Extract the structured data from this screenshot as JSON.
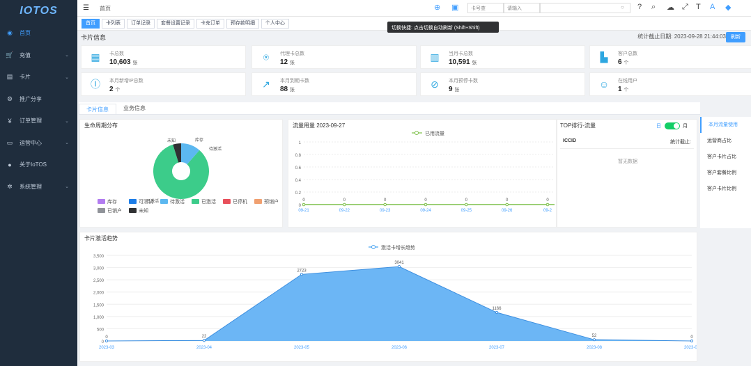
{
  "app": {
    "logo": "IOTOS"
  },
  "sidebar": {
    "items": [
      {
        "label": "首页",
        "icon": "home-icon",
        "glyph": "◉",
        "arrow": false
      },
      {
        "label": "充值",
        "icon": "cart-icon",
        "glyph": "🛒",
        "arrow": true
      },
      {
        "label": "卡片",
        "icon": "card-icon",
        "glyph": "▤",
        "arrow": true
      },
      {
        "label": "推广分享",
        "icon": "share-icon",
        "glyph": "⚙",
        "arrow": false
      },
      {
        "label": "订单管理",
        "icon": "yen-icon",
        "glyph": "¥",
        "arrow": true
      },
      {
        "label": "运营中心",
        "icon": "monitor-icon",
        "glyph": "▭",
        "arrow": true
      },
      {
        "label": "关于IoTOS",
        "icon": "info-icon",
        "glyph": "●",
        "arrow": false
      },
      {
        "label": "系统管理",
        "icon": "settings-icon",
        "glyph": "✲",
        "arrow": true
      }
    ]
  },
  "topbar": {
    "breadcrumb": "首页",
    "select1": "卡号查",
    "select2": "请输入",
    "tooltip": "切换快捷: 点击切换自动刷新 (Shift+Shift)"
  },
  "tags": [
    "首页",
    "卡列表",
    "订单记录",
    "套餐设置记录",
    "卡充订单",
    "预存款明细",
    "个人中心"
  ],
  "overview": {
    "title": "卡片信息",
    "stat_label": "统计截止日期: 2023-09-28 21:44:03",
    "refresh": "刷新"
  },
  "cards": [
    {
      "label": "卡总数",
      "value": "10,603",
      "unit": "张",
      "icon": "sim-icon",
      "glyph": "▦"
    },
    {
      "label": "代理卡总数",
      "value": "12",
      "unit": "张",
      "icon": "agent-icon",
      "glyph": "⍟"
    },
    {
      "label": "当月卡总数",
      "value": "10,591",
      "unit": "张",
      "icon": "calendar-icon",
      "glyph": "▥"
    },
    {
      "label": "客户总数",
      "value": "6",
      "unit": "个",
      "icon": "building-icon",
      "glyph": "▙"
    },
    {
      "label": "本月新增IP总数",
      "value": "2",
      "unit": "个",
      "icon": "ip-icon",
      "glyph": "Ⓘ"
    },
    {
      "label": "本月到期卡数",
      "value": "88",
      "unit": "张",
      "icon": "chart-up-icon",
      "glyph": "↗"
    },
    {
      "label": "本月预停卡数",
      "value": "9",
      "unit": "张",
      "icon": "stop-card-icon",
      "glyph": "⊘"
    },
    {
      "label": "在线用户",
      "value": "1",
      "unit": "个",
      "icon": "user-icon",
      "glyph": "☺"
    }
  ],
  "tabs": [
    "卡片信息",
    "业务信息"
  ],
  "pie_panel": {
    "title": "生命周期分布"
  },
  "line_panel": {
    "title": "流量用量 2023-09-27",
    "legend": "已用流量"
  },
  "top_panel": {
    "title": "TOP排行-流量",
    "toggle_left": "日",
    "toggle_right": "月",
    "col1": "ICCID",
    "col2": "统计截止:",
    "empty": "暂无数据"
  },
  "right_menu": [
    "本月流量使用",
    "运营商占比",
    "客户卡片占比",
    "客户套餐比例",
    "客户卡片比例"
  ],
  "area_panel": {
    "title": "卡片激活趋势",
    "legend": "激活卡增长趋势"
  },
  "chart_data": [
    {
      "type": "pie",
      "title": "生命周期分布",
      "series": [
        {
          "name": "库存",
          "value": 0.5,
          "color": "#b27cf0"
        },
        {
          "name": "可测试",
          "value": 0,
          "color": "#1e7ee8"
        },
        {
          "name": "待激活",
          "value": 1200,
          "color": "#5cb8f0"
        },
        {
          "name": "已激活",
          "value": 8800,
          "color": "#3ccc8a"
        },
        {
          "name": "已停机",
          "value": 0,
          "color": "#e8505b"
        },
        {
          "name": "预销户",
          "value": 0,
          "color": "#f0a070"
        },
        {
          "name": "已销户",
          "value": 0,
          "color": "#909399"
        },
        {
          "name": "未知",
          "value": 500,
          "color": "#303133"
        }
      ],
      "labels": [
        "未知",
        "库存",
        "待激活",
        "已激活"
      ]
    },
    {
      "type": "line",
      "title": "流量用量 2023-09-27",
      "series": [
        {
          "name": "已用流量",
          "values": [
            0,
            0,
            0,
            0,
            0,
            0,
            0
          ]
        }
      ],
      "categories": [
        "09-21",
        "09-22",
        "09-23",
        "09-24",
        "09-25",
        "09-26",
        "09-2"
      ],
      "yticks": [
        "0",
        "0.2",
        "0.4",
        "0.6",
        "0.8",
        "1"
      ],
      "ylim": [
        0,
        1
      ]
    },
    {
      "type": "area",
      "title": "卡片激活趋势",
      "series": [
        {
          "name": "激活卡增长趋势",
          "values": [
            0,
            22,
            2723,
            3041,
            1166,
            52,
            0
          ]
        }
      ],
      "categories": [
        "2023-03",
        "2023-04",
        "2023-05",
        "2023-06",
        "2023-07",
        "2023-08",
        "2023-09"
      ],
      "yticks": [
        "0",
        "500",
        "1,000",
        "1,500",
        "2,000",
        "2,500",
        "3,000",
        "3,500"
      ],
      "ylim": [
        0,
        3500
      ],
      "data_labels": [
        "0",
        "22",
        "2723",
        "3041",
        "1166",
        "52",
        "0"
      ]
    }
  ]
}
